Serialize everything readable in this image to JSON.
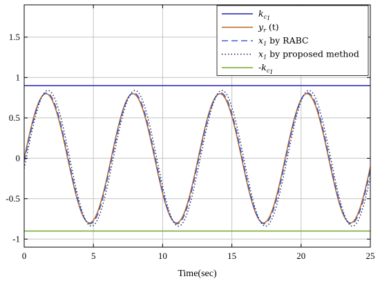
{
  "chart_data": {
    "type": "line",
    "title": "",
    "xlabel": "Time(sec)",
    "ylabel": "",
    "xlim": [
      0,
      25
    ],
    "ylim": [
      -1.1,
      1.9
    ],
    "xticks": [
      0,
      5,
      10,
      15,
      20,
      25
    ],
    "xtick_labels": [
      "0",
      "5",
      "10",
      "15",
      "20",
      "25"
    ],
    "yticks": [
      -1,
      -0.5,
      0,
      0.5,
      1,
      1.5
    ],
    "ytick_labels": [
      "-1",
      "-0.5",
      "0",
      "0.5",
      "1",
      "1.5"
    ],
    "grid": true,
    "legend_position": "top-right",
    "series": [
      {
        "name": "k_c1",
        "legend": {
          "prefix": "",
          "main": "k",
          "sub1": "c",
          "sub2": "1",
          "suffix": ""
        },
        "color": "#1f1fb4",
        "style": "solid",
        "kind": "constant",
        "value": 0.9
      },
      {
        "name": "y_r (t)",
        "legend": {
          "prefix": "",
          "main": "y",
          "sub1": "r",
          "sub2": "",
          "suffix": " (t)"
        },
        "color": "#b8641e",
        "style": "solid",
        "kind": "sine",
        "amplitude": 0.8,
        "period_sec": 6.283,
        "phase_shift_sec": 0
      },
      {
        "name": "x_1 by RABC",
        "legend": {
          "prefix": "",
          "main": "x",
          "sub1": "1",
          "sub2": "",
          "suffix": " by RABC"
        },
        "color": "#3a5fcd",
        "style": "dashed",
        "kind": "sine",
        "amplitude": 0.81,
        "period_sec": 6.283,
        "phase_shift_sec": 0.05
      },
      {
        "name": "x_1 by proposed method",
        "legend": {
          "prefix": "",
          "main": "x",
          "sub1": "1",
          "sub2": "",
          "suffix": " by proposed method"
        },
        "color": "#1a1a5e",
        "style": "dotted",
        "kind": "sine",
        "amplitude": 0.84,
        "period_sec": 6.283,
        "phase_shift_sec": 0.15
      },
      {
        "name": "-k_c1",
        "legend": {
          "prefix": "-",
          "main": "k",
          "sub1": "c",
          "sub2": "1",
          "suffix": ""
        },
        "color": "#6fa52a",
        "style": "solid",
        "kind": "constant",
        "value": -0.9
      }
    ]
  }
}
